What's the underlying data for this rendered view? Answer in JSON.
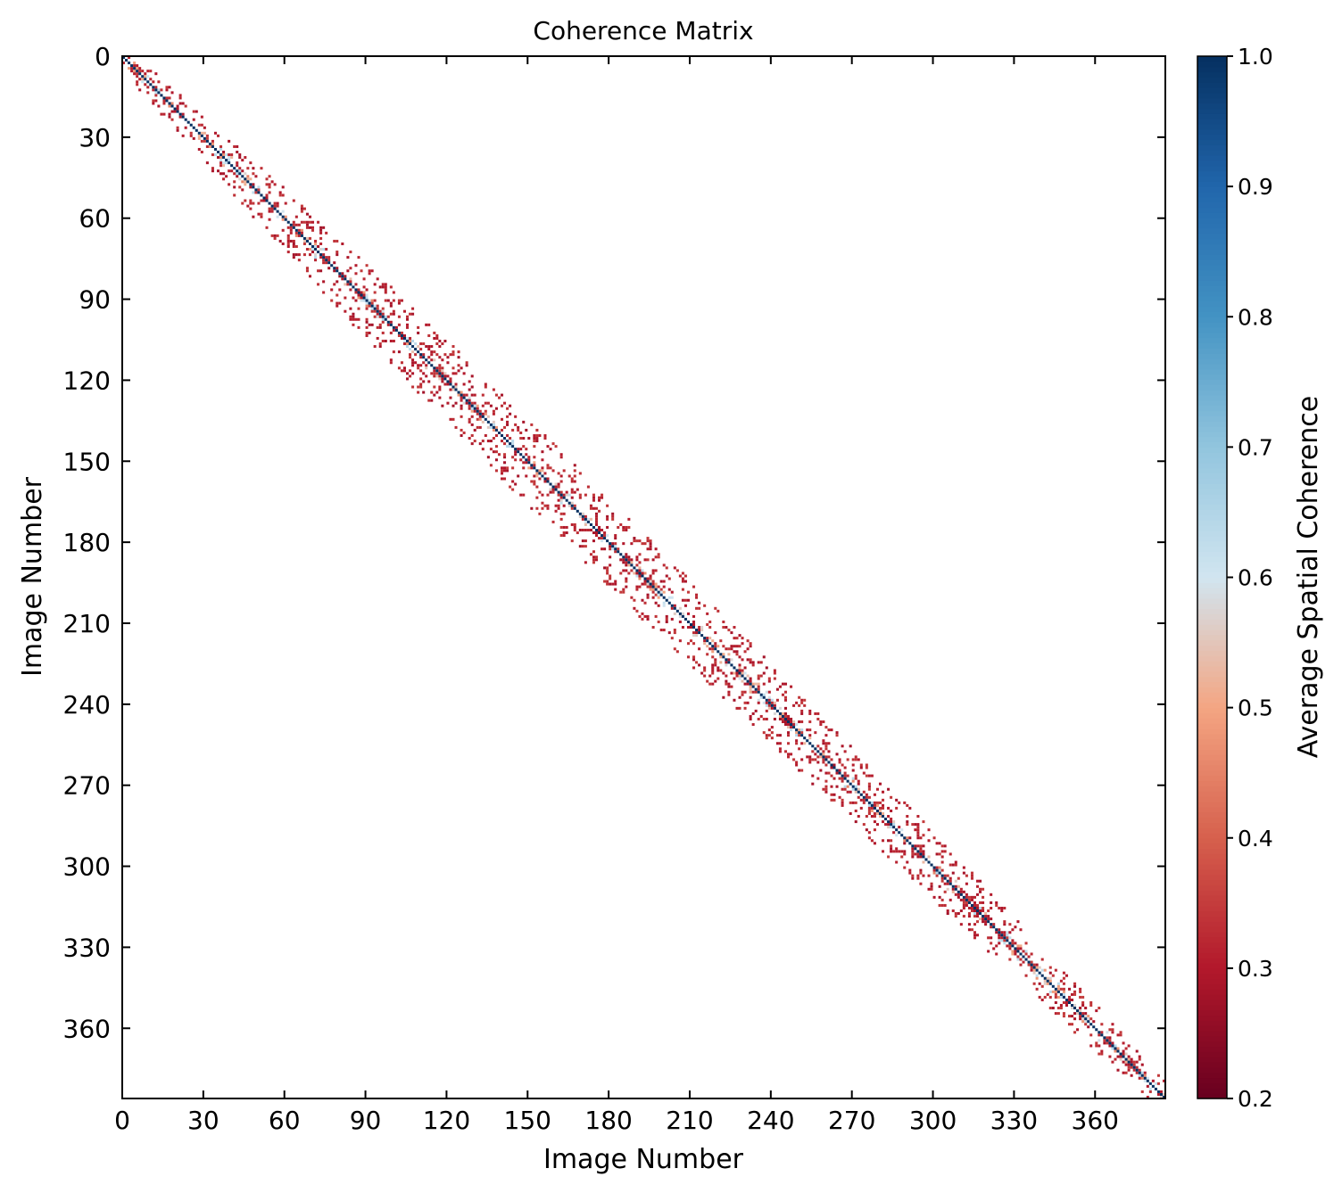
{
  "chart_data": {
    "type": "heatmap",
    "title": "Coherence Matrix",
    "xlabel": "Image Number",
    "ylabel": "Image Number",
    "n_images": 386,
    "xlim": [
      0,
      386
    ],
    "ylim": [
      386,
      0
    ],
    "x_ticks": [
      0,
      30,
      60,
      90,
      120,
      150,
      180,
      210,
      240,
      270,
      300,
      330,
      360
    ],
    "y_ticks": [
      0,
      30,
      60,
      90,
      120,
      150,
      180,
      210,
      240,
      270,
      300,
      330,
      360
    ],
    "grid": false,
    "colormap": "RdBu",
    "colorbar": {
      "label": "Average Spatial Coherence",
      "range": [
        0.2,
        1.0
      ],
      "ticks": [
        0.2,
        0.3,
        0.4,
        0.5,
        0.6,
        0.7,
        0.8,
        0.9,
        1.0
      ],
      "tick_labels": [
        "0.2",
        "0.3",
        "0.4",
        "0.5",
        "0.6",
        "0.7",
        "0.8",
        "0.9",
        "1.0"
      ]
    },
    "diagonal_value": 1.0,
    "band": {
      "description_of_values": "sparse off-diagonal pairs, mostly coherence 0.2-0.35, some 0.4-0.65 near the diagonal",
      "typical_value": 0.28,
      "half_width_by_row": [
        [
          0,
          5
        ],
        [
          30,
          9
        ],
        [
          60,
          12
        ],
        [
          90,
          14
        ],
        [
          120,
          15
        ],
        [
          150,
          16
        ],
        [
          180,
          16
        ],
        [
          210,
          15
        ],
        [
          240,
          14
        ],
        [
          270,
          13
        ],
        [
          300,
          12
        ],
        [
          330,
          10
        ],
        [
          360,
          8
        ],
        [
          386,
          5
        ]
      ]
    }
  },
  "colors": {
    "cmap_stops": [
      "#67001f",
      "#b2182b",
      "#d6604d",
      "#f4a582",
      "#d1e5f0",
      "#92c5de",
      "#4393c3",
      "#2166ac",
      "#053061"
    ],
    "diagonal": "#053061"
  }
}
